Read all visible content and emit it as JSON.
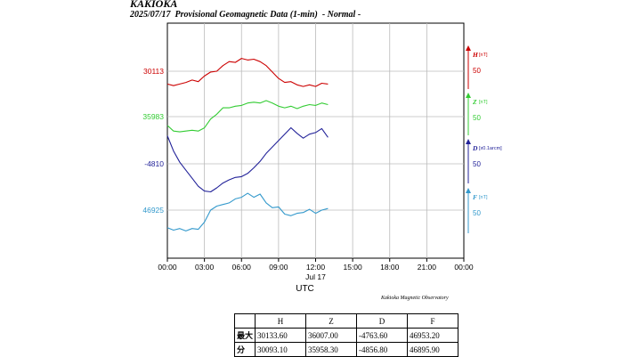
{
  "header": {
    "station": "KAKIOKA",
    "subtitle": "2025/07/17  Provisional Geomagnetic Data (1-min)  - Normal -"
  },
  "credit": "Kakioka Magnetic Observatory",
  "chart_data": {
    "type": "line",
    "x_axis": {
      "ticks": [
        "00:00",
        "03:00",
        "06:00",
        "09:00",
        "12:00",
        "15:00",
        "18:00",
        "21:00",
        "00:00"
      ],
      "range_hours": [
        0,
        24
      ],
      "date_label": "Jul 17",
      "xlabel": "UTC"
    },
    "grid": true,
    "data_end_hour": 13,
    "series": [
      {
        "name": "H",
        "unit": "[nT]",
        "scale": "50",
        "baseline_label": "30113",
        "color": "#cc0000",
        "x": [
          0,
          0.5,
          1,
          1.5,
          2,
          2.5,
          3,
          3.5,
          4,
          4.5,
          5,
          5.5,
          6,
          6.5,
          7,
          7.5,
          8,
          8.5,
          9,
          9.5,
          10,
          10.5,
          11,
          11.5,
          12,
          12.5,
          13
        ],
        "y": [
          30097,
          30095,
          30097,
          30099,
          30102,
          30100,
          30107,
          30112,
          30113,
          30120,
          30125,
          30124,
          30129,
          30127,
          30128,
          30125,
          30120,
          30112,
          30104,
          30099,
          30100,
          30096,
          30094,
          30096,
          30094,
          30098,
          30097
        ]
      },
      {
        "name": "Z",
        "unit": "[nT]",
        "scale": "50",
        "baseline_label": "35983",
        "color": "#33cc33",
        "x": [
          0,
          0.5,
          1,
          1.5,
          2,
          2.5,
          3,
          3.5,
          4,
          4.5,
          5,
          5.5,
          6,
          6.5,
          7,
          7.5,
          8,
          8.5,
          9,
          9.5,
          10,
          10.5,
          11,
          11.5,
          12,
          12.5,
          13
        ],
        "y": [
          35972,
          35965,
          35964,
          35965,
          35966,
          35965,
          35969,
          35980,
          35986,
          35994,
          35994,
          35996,
          35997,
          36000,
          36001,
          36000,
          36003,
          36000,
          35996,
          35994,
          35996,
          35993,
          35996,
          35998,
          35997,
          36000,
          35998
        ]
      },
      {
        "name": "D",
        "unit": "[x0.1arcm]",
        "scale": "50",
        "baseline_label": "-4810",
        "color": "#222299",
        "x": [
          0,
          0.5,
          1,
          1.5,
          2,
          2.5,
          3,
          3.5,
          4,
          4.5,
          5,
          5.5,
          6,
          6.5,
          7,
          7.5,
          8,
          8.5,
          9,
          9.5,
          10,
          10.5,
          11,
          11.5,
          12,
          12.5,
          13
        ],
        "y": [
          -4775,
          -4794,
          -4808,
          -4818,
          -4828,
          -4838,
          -4844,
          -4845,
          -4840,
          -4834,
          -4830,
          -4827,
          -4826,
          -4822,
          -4815,
          -4807,
          -4797,
          -4789,
          -4781,
          -4773,
          -4765,
          -4772,
          -4778,
          -4773,
          -4771,
          -4766,
          -4777
        ]
      },
      {
        "name": "F",
        "unit": "[nT]",
        "scale": "50",
        "baseline_label": "46925",
        "color": "#3399cc",
        "x": [
          0,
          0.5,
          1,
          1.5,
          2,
          2.5,
          3,
          3.5,
          4,
          4.5,
          5,
          5.5,
          6,
          6.5,
          7,
          7.5,
          8,
          8.5,
          9,
          9.5,
          10,
          10.5,
          11,
          11.5,
          12,
          12.5,
          13
        ],
        "y": [
          46903,
          46900,
          46902,
          46899,
          46902,
          46901,
          46910,
          46925,
          46930,
          46932,
          46934,
          46939,
          46941,
          46946,
          46941,
          46945,
          46934,
          46928,
          46929,
          46920,
          46918,
          46921,
          46922,
          46926,
          46921,
          46925,
          46927
        ]
      }
    ]
  },
  "stats_table": {
    "headers": [
      "",
      "H",
      "Z",
      "D",
      "F"
    ],
    "rows": [
      [
        "最大",
        "30133.60",
        "36007.00",
        "-4763.60",
        "46953.20"
      ],
      [
        "分",
        "30093.10",
        "35958.30",
        "-4856.80",
        "46895.90"
      ]
    ]
  }
}
